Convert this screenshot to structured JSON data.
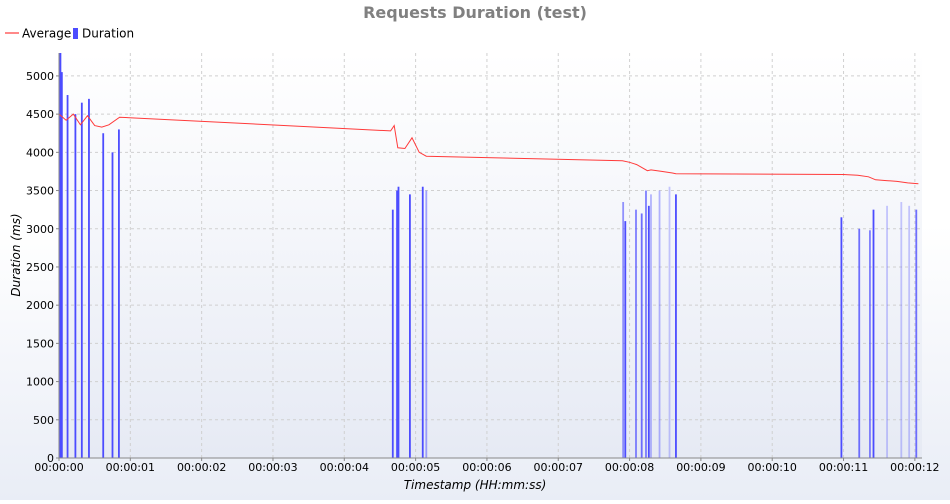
{
  "chart_data": {
    "type": "bar+line",
    "title": "Requests Duration (test)",
    "xlabel": "Timestamp (HH:mm:ss)",
    "ylabel": "Duration (ms)",
    "ylim": [
      0,
      5300
    ],
    "xlim": [
      0,
      12.1
    ],
    "x_ticks": [
      "00:00:00",
      "00:00:01",
      "00:00:02",
      "00:00:03",
      "00:00:04",
      "00:00:05",
      "00:00:06",
      "00:00:07",
      "00:00:08",
      "00:00:09",
      "00:00:10",
      "00:00:11",
      "00:00:12"
    ],
    "y_ticks": [
      0,
      500,
      1000,
      1500,
      2000,
      2500,
      3000,
      3500,
      4000,
      4500,
      5000
    ],
    "grid": true,
    "legend": {
      "placement": "top-left",
      "entries": [
        "Average",
        "Duration"
      ]
    },
    "colors": {
      "average": "#ff3a3a",
      "duration": "#4c4cff"
    },
    "series": [
      {
        "name": "Duration",
        "kind": "bar",
        "x": [
          0.02,
          0.04,
          0.12,
          0.23,
          0.32,
          0.42,
          0.62,
          0.75,
          0.84,
          4.68,
          4.74,
          4.76,
          4.92,
          5.1,
          5.15,
          7.91,
          7.94,
          8.09,
          8.17,
          8.23,
          8.27,
          8.3,
          8.42,
          8.56,
          8.65,
          10.97,
          11.22,
          11.37,
          11.42,
          11.61,
          11.81,
          11.92,
          12.02
        ],
        "values": [
          5300,
          5050,
          4750,
          4500,
          4650,
          4700,
          4250,
          4000,
          4300,
          3250,
          3500,
          3550,
          3450,
          3550,
          3500,
          3350,
          3100,
          3250,
          3200,
          3500,
          3300,
          3450,
          3500,
          3550,
          3450,
          3150,
          3000,
          2980,
          3250,
          3300,
          3350,
          3300,
          3250
        ],
        "opacity": [
          1,
          1,
          1,
          1,
          1,
          1,
          1,
          1,
          1,
          1,
          1,
          1,
          1,
          1,
          0.5,
          0.6,
          1,
          0.7,
          0.8,
          0.7,
          1,
          0.4,
          0.4,
          0.3,
          1,
          1,
          0.8,
          0.7,
          1,
          0.3,
          0.3,
          0.3,
          0.8
        ]
      },
      {
        "name": "Average",
        "kind": "line",
        "x": [
          0.0,
          0.1,
          0.2,
          0.3,
          0.4,
          0.5,
          0.6,
          0.7,
          0.85,
          4.65,
          4.7,
          4.75,
          4.85,
          4.95,
          5.05,
          5.15,
          7.9,
          8.0,
          8.1,
          8.25,
          8.3,
          8.45,
          8.6,
          8.65,
          11.0,
          11.2,
          11.35,
          11.45,
          11.6,
          11.75,
          11.9,
          12.05
        ],
        "values": [
          4500,
          4420,
          4500,
          4360,
          4480,
          4350,
          4330,
          4360,
          4460,
          4280,
          4350,
          4060,
          4050,
          4190,
          4000,
          3950,
          3890,
          3870,
          3840,
          3760,
          3770,
          3750,
          3730,
          3720,
          3710,
          3700,
          3680,
          3640,
          3630,
          3620,
          3600,
          3590
        ]
      }
    ]
  }
}
